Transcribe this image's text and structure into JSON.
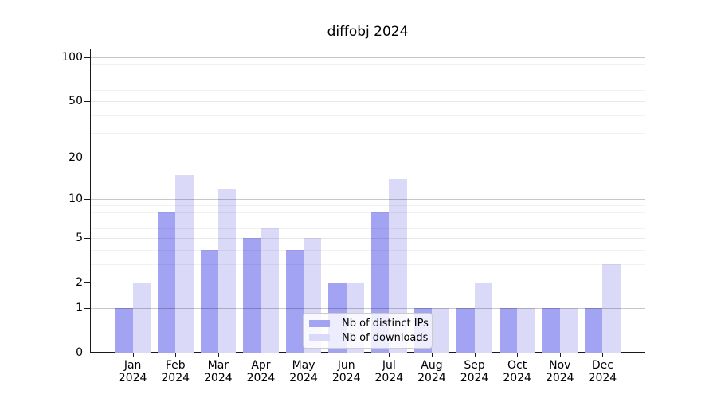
{
  "title": "diffobj 2024",
  "chart_data": {
    "type": "bar",
    "title": "diffobj 2024",
    "categories": [
      "Jan 2024",
      "Feb 2024",
      "Mar 2024",
      "Apr 2024",
      "May 2024",
      "Jun 2024",
      "Jul 2024",
      "Aug 2024",
      "Sep 2024",
      "Oct 2024",
      "Nov 2024",
      "Dec 2024"
    ],
    "series": [
      {
        "name": "Nb of distinct IPs",
        "color": "#a3a3f3",
        "values": [
          1,
          8,
          4,
          5,
          4,
          2,
          8,
          1,
          1,
          1,
          1,
          1
        ]
      },
      {
        "name": "Nb of downloads",
        "color": "#dadaf8",
        "values": [
          2,
          15,
          12,
          6,
          5,
          2,
          14,
          1,
          2,
          1,
          1,
          3
        ]
      }
    ],
    "xlabel": "",
    "ylabel": "",
    "yscale": "log1p",
    "ylim": [
      0,
      115
    ],
    "yticks": [
      0,
      1,
      2,
      5,
      10,
      20,
      50,
      100
    ],
    "minor_gridline_values": [
      3,
      4,
      6,
      7,
      8,
      9,
      30,
      40,
      60,
      70,
      80,
      90
    ],
    "grid": "horizontal, drawn above bars",
    "legend_position": "bottom-center",
    "bar_grouping": "paired, IPs left / downloads right of month tick"
  },
  "legend": {
    "items": [
      {
        "label": "Nb of distinct IPs",
        "swatch_color": "#a3a3f3"
      },
      {
        "label": "Nb of downloads",
        "swatch_color": "#dadaf8"
      }
    ]
  },
  "colors": {
    "background": "#ffffff",
    "spine": "#1a1a1a",
    "gridline_major": "rgba(0,0,0,0.22)",
    "gridline_mid": "rgba(0,0,0,0.09)",
    "gridline_minor": "rgba(0,0,0,0.05)",
    "legend_border": "#cccccc",
    "text": "#000000"
  }
}
